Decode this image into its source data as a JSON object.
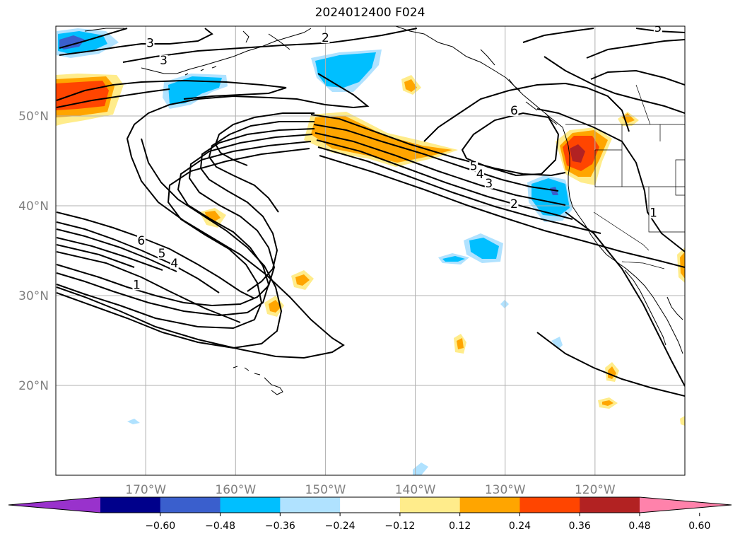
{
  "title": "2024012400 F024",
  "map": {
    "projection": "PlateCarree",
    "lon_range": [
      -180,
      -110
    ],
    "lat_range": [
      10,
      60
    ],
    "gridlines": true,
    "lon_ticks": [
      {
        "lon": -170,
        "label": "170°W"
      },
      {
        "lon": -160,
        "label": "160°W"
      },
      {
        "lon": -150,
        "label": "150°W"
      },
      {
        "lon": -140,
        "label": "140°W"
      },
      {
        "lon": -130,
        "label": "130°W"
      },
      {
        "lon": -120,
        "label": "120°W"
      }
    ],
    "lat_ticks": [
      {
        "lat": 50,
        "label": "50°N"
      },
      {
        "lat": 40,
        "label": "40°N"
      },
      {
        "lat": 30,
        "label": "30°N"
      },
      {
        "lat": 20,
        "label": "20°N"
      }
    ],
    "contour_labels": [
      {
        "text": "3",
        "lon": -169.5,
        "lat": 57.9
      },
      {
        "text": "3",
        "lon": -168.0,
        "lat": 56.0
      },
      {
        "text": "2",
        "lon": -150.0,
        "lat": 58.5
      },
      {
        "text": "5",
        "lon": -113.0,
        "lat": 59.6
      },
      {
        "text": "6",
        "lon": -129.0,
        "lat": 50.4
      },
      {
        "text": "5",
        "lon": -133.5,
        "lat": 44.2
      },
      {
        "text": "4",
        "lon": -132.8,
        "lat": 43.3
      },
      {
        "text": "3",
        "lon": -131.8,
        "lat": 42.3
      },
      {
        "text": "2",
        "lon": -129.0,
        "lat": 40.0
      },
      {
        "text": "1",
        "lon": -113.5,
        "lat": 39.0
      },
      {
        "text": "6",
        "lon": -170.5,
        "lat": 35.9
      },
      {
        "text": "5",
        "lon": -168.2,
        "lat": 34.5
      },
      {
        "text": "4",
        "lon": -166.8,
        "lat": 33.4
      },
      {
        "text": "1",
        "lon": -171.0,
        "lat": 31.0
      }
    ],
    "shading_colors": {
      "strong_negative": "#9932cc",
      "negative_0.48": "#00008b",
      "negative_0.36": "#3a5fcd",
      "negative_0.24": "#00bfff",
      "negative_0.12": "#b0e2ff",
      "positive_0.12": "#ffec8b",
      "positive_0.24": "#ffa500",
      "positive_0.36": "#ff4500",
      "positive_0.48": "#b22222",
      "strong_positive": "#ff82ab"
    }
  },
  "colorbar": {
    "levels": [
      "−0.60",
      "−0.48",
      "−0.36",
      "−0.24",
      "−0.12",
      "0.12",
      "0.24",
      "0.36",
      "0.48",
      "0.60"
    ],
    "colors": [
      "#9932cc",
      "#00008b",
      "#3a5fcd",
      "#00bfff",
      "#b0e2ff",
      "#ffffff",
      "#ffec8b",
      "#ffa500",
      "#ff4500",
      "#b22222",
      "#ff82ab"
    ],
    "extend": "both"
  }
}
